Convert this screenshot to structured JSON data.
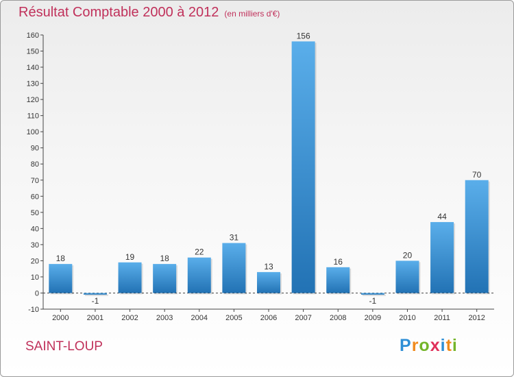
{
  "title": "Résultat Comptable 2000 à 2012",
  "subtitle": "(en milliers d'€)",
  "commune": "SAINT-LOUP",
  "logo": {
    "text": "Proxiti",
    "letters": [
      {
        "ch": "P",
        "color": "#2e8fd6"
      },
      {
        "ch": "r",
        "color": "#f08a1c"
      },
      {
        "ch": "o",
        "color": "#74b52a"
      },
      {
        "ch": "x",
        "color": "#e0305a"
      },
      {
        "ch": "i",
        "color": "#2e8fd6"
      },
      {
        "ch": "t",
        "color": "#f08a1c"
      },
      {
        "ch": "i",
        "color": "#74b52a"
      }
    ]
  },
  "colors": {
    "title": "#c0305a",
    "bar_top": "#5aaeea",
    "bar_bottom": "#2272b4"
  },
  "chart_data": {
    "type": "bar",
    "title": "Résultat Comptable 2000 à 2012",
    "xlabel": "",
    "ylabel": "",
    "categories": [
      "2000",
      "2001",
      "2002",
      "2003",
      "2004",
      "2005",
      "2006",
      "2007",
      "2008",
      "2009",
      "2010",
      "2011",
      "2012"
    ],
    "values": [
      18,
      -1,
      19,
      18,
      22,
      31,
      13,
      156,
      16,
      -1,
      20,
      44,
      70
    ],
    "ylim": [
      -10,
      160
    ],
    "yticks": [
      -10,
      0,
      10,
      20,
      30,
      40,
      50,
      60,
      70,
      80,
      90,
      100,
      110,
      120,
      130,
      140,
      150,
      160
    ],
    "grid": false,
    "legend": "none"
  }
}
